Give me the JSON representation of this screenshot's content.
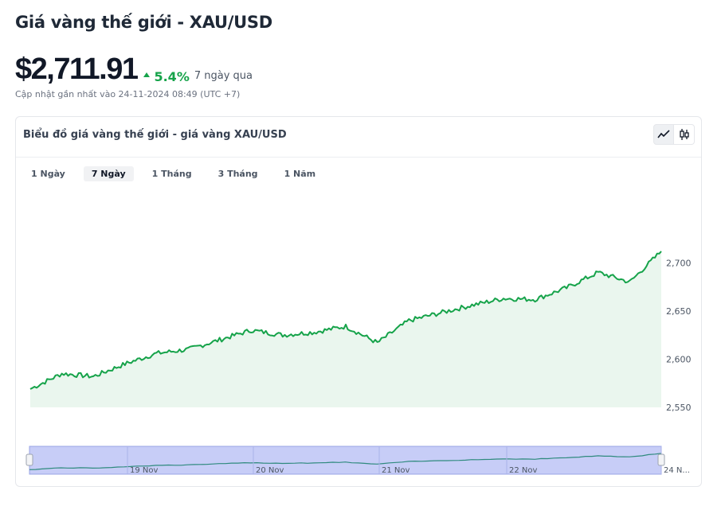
{
  "header": {
    "title": "Giá vàng thế giới - XAU/USD",
    "price": "$2,711.91",
    "change": "5.4%",
    "period": "7 ngày qua",
    "updated": "Cập nhật gần nhất vào 24-11-2024 08:49 (UTC +7)"
  },
  "card": {
    "title": "Biểu đồ giá vàng thế giới - giá vàng XAU/USD",
    "view_toggle": [
      "line-chart-icon",
      "candlestick-icon"
    ],
    "ranges": [
      "1 Ngày",
      "7 Ngày",
      "1 Tháng",
      "3 Tháng",
      "1 Năm"
    ],
    "active_range": "7 Ngày"
  },
  "colors": {
    "line": "#16a34a",
    "fill": "#eaf6ee",
    "up": "#16a34a",
    "navigator_fill": "#c7cdf7",
    "navigator_line": "#2f8a7e"
  },
  "chart_data": {
    "type": "area",
    "ylim": [
      2550,
      2725
    ],
    "y_ticks": [
      "2,550",
      "2,600",
      "2,650",
      "2,700"
    ],
    "y_tick_values": [
      2550,
      2600,
      2650,
      2700
    ],
    "navigator_labels": [
      "19 Nov",
      "20 Nov",
      "21 Nov",
      "22 Nov",
      "24 N..."
    ],
    "series": [
      {
        "x": [
          "18 Nov 00:00",
          "18 Nov 06:00",
          "18 Nov 12:00",
          "18 Nov 18:00",
          "19 Nov 00:00",
          "19 Nov 06:00",
          "19 Nov 12:00",
          "19 Nov 18:00",
          "20 Nov 00:00",
          "20 Nov 06:00",
          "20 Nov 12:00",
          "20 Nov 18:00",
          "21 Nov 00:00",
          "21 Nov 06:00",
          "21 Nov 12:00",
          "21 Nov 18:00",
          "22 Nov 00:00",
          "22 Nov 06:00",
          "22 Nov 12:00",
          "22 Nov 18:00",
          "22 Nov 23:59"
        ],
        "values": [
          2569,
          2585,
          2582,
          2595,
          2606,
          2610,
          2620,
          2630,
          2625,
          2628,
          2634,
          2617,
          2640,
          2648,
          2656,
          2663,
          2662,
          2674,
          2690,
          2680,
          2711.91
        ]
      }
    ]
  }
}
